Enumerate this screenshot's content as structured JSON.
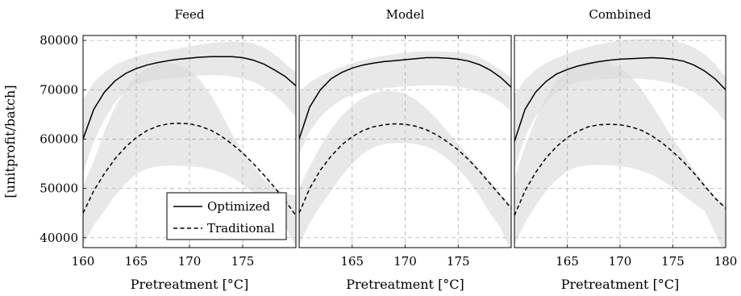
{
  "chart_data": [
    {
      "type": "line",
      "title": "Feed",
      "xlabel": "Pretreatment [°C]",
      "ylabel": "[unitprofit/batch]",
      "xlim": [
        160,
        180
      ],
      "ylim": [
        38000,
        81000
      ],
      "x_ticks": [
        160,
        165,
        170,
        175
      ],
      "y_ticks": [
        40000,
        50000,
        60000,
        70000,
        80000
      ],
      "grid": true,
      "series": [
        {
          "name": "Optimized",
          "style": "solid",
          "x": [
            160,
            161,
            162,
            163,
            164,
            165,
            166,
            167,
            168,
            169,
            170,
            171,
            172,
            173,
            174,
            175,
            176,
            177,
            178,
            179,
            180
          ],
          "y": [
            60000,
            66000,
            69500,
            71800,
            73300,
            74300,
            75000,
            75500,
            75900,
            76200,
            76400,
            76600,
            76700,
            76700,
            76700,
            76500,
            76000,
            75200,
            74000,
            72700,
            70800
          ],
          "band_upper": [
            68000,
            71500,
            73500,
            75000,
            76000,
            76800,
            77300,
            77700,
            78000,
            78400,
            78800,
            79200,
            79500,
            79700,
            79800,
            79700,
            79400,
            78600,
            77200,
            75300,
            73500
          ],
          "band_lower": [
            53000,
            59500,
            64000,
            67500,
            69800,
            71000,
            71600,
            72000,
            72300,
            72500,
            72700,
            72900,
            73000,
            72900,
            72700,
            72300,
            71600,
            70500,
            69000,
            67000,
            64500
          ]
        },
        {
          "name": "Traditional",
          "style": "dashed",
          "x": [
            160,
            161,
            162,
            163,
            164,
            165,
            166,
            167,
            168,
            169,
            170,
            171,
            172,
            173,
            174,
            175,
            176,
            177,
            178,
            179,
            180
          ],
          "y": [
            45000,
            49500,
            53000,
            56000,
            58400,
            60300,
            61700,
            62600,
            63100,
            63200,
            63100,
            62600,
            61800,
            60600,
            59000,
            57200,
            55000,
            52700,
            50200,
            47500,
            44500
          ],
          "band_upper": [
            50500,
            55500,
            61500,
            66500,
            70200,
            72800,
            74300,
            75200,
            75500,
            75100,
            74000,
            72000,
            69000,
            65200,
            61000,
            57500,
            54500,
            51800,
            50000,
            49000,
            48500
          ],
          "band_lower": [
            38500,
            42500,
            45500,
            48500,
            51000,
            53000,
            54000,
            54500,
            54600,
            54600,
            54500,
            54300,
            53900,
            53200,
            52200,
            50800,
            49200,
            47500,
            45000,
            42500,
            38000
          ]
        }
      ],
      "legend": {
        "entries": [
          "Optimized",
          "Traditional"
        ],
        "placement": "bottom-right"
      }
    },
    {
      "type": "line",
      "title": "Model",
      "xlabel": "Pretreatment [°C]",
      "xlim": [
        160,
        180
      ],
      "ylim": [
        38000,
        81000
      ],
      "x_ticks": [
        165,
        170,
        175
      ],
      "grid": true,
      "series": [
        {
          "name": "Optimized",
          "style": "solid",
          "x": [
            160,
            161,
            162,
            163,
            164,
            165,
            166,
            167,
            168,
            169,
            170,
            171,
            172,
            173,
            174,
            175,
            176,
            177,
            178,
            179,
            180
          ],
          "y": [
            60000,
            66500,
            70000,
            72200,
            73500,
            74400,
            75000,
            75400,
            75700,
            75900,
            76100,
            76300,
            76500,
            76500,
            76400,
            76200,
            75800,
            75100,
            74000,
            72500,
            70500
          ],
          "band_upper": [
            69500,
            71500,
            72800,
            73800,
            74600,
            75400,
            76000,
            76500,
            76900,
            77200,
            77500,
            77700,
            77800,
            77800,
            77700,
            77600,
            77300,
            76600,
            75400,
            74000,
            72500
          ],
          "band_lower": [
            57000,
            61500,
            64500,
            66500,
            68000,
            69000,
            69600,
            70000,
            70300,
            70500,
            70700,
            70800,
            70900,
            70900,
            70800,
            70600,
            70200,
            69600,
            68700,
            67500,
            65500
          ]
        },
        {
          "name": "Traditional",
          "style": "dashed",
          "x": [
            160,
            161,
            162,
            163,
            164,
            165,
            166,
            167,
            168,
            169,
            170,
            171,
            172,
            173,
            174,
            175,
            176,
            177,
            178,
            179,
            180
          ],
          "y": [
            45000,
            50000,
            53700,
            56500,
            58800,
            60500,
            61700,
            62500,
            62900,
            63100,
            63000,
            62600,
            61900,
            60800,
            59400,
            57800,
            55800,
            53500,
            51000,
            48500,
            46000
          ],
          "band_upper": [
            50000,
            54500,
            58500,
            62000,
            64700,
            66800,
            68300,
            69300,
            69800,
            69800,
            69200,
            68000,
            66200,
            64000,
            61500,
            59000,
            56500,
            54000,
            51500,
            49000,
            46500
          ],
          "band_lower": [
            38500,
            43000,
            46500,
            49500,
            52500,
            55000,
            57000,
            58300,
            59000,
            59200,
            59200,
            59000,
            58500,
            57500,
            56000,
            54000,
            51500,
            48500,
            45000,
            42000,
            37000
          ]
        }
      ]
    },
    {
      "type": "line",
      "title": "Combined",
      "xlabel": "Pretreatment [°C]",
      "xlim": [
        160,
        180
      ],
      "ylim": [
        38000,
        81000
      ],
      "x_ticks": [
        165,
        170,
        175,
        180
      ],
      "grid": true,
      "series": [
        {
          "name": "Optimized",
          "style": "solid",
          "x": [
            160,
            161,
            162,
            163,
            164,
            165,
            166,
            167,
            168,
            169,
            170,
            171,
            172,
            173,
            174,
            175,
            176,
            177,
            178,
            179,
            180
          ],
          "y": [
            59500,
            66000,
            69500,
            71700,
            73200,
            74100,
            74800,
            75300,
            75700,
            76000,
            76200,
            76300,
            76400,
            76500,
            76400,
            76200,
            75800,
            75000,
            73800,
            72200,
            70000
          ],
          "band_upper": [
            69000,
            72000,
            74000,
            75400,
            76400,
            77300,
            78100,
            78700,
            79200,
            79600,
            80000,
            80200,
            80300,
            80300,
            80200,
            80000,
            79500,
            78600,
            77200,
            75200,
            72500
          ],
          "band_lower": [
            54000,
            60500,
            64500,
            67500,
            69500,
            70800,
            71500,
            71900,
            72100,
            72200,
            72300,
            72300,
            72200,
            72000,
            71700,
            71200,
            70500,
            69500,
            68000,
            66000,
            63500
          ]
        },
        {
          "name": "Traditional",
          "style": "dashed",
          "x": [
            160,
            161,
            162,
            163,
            164,
            165,
            166,
            167,
            168,
            169,
            170,
            171,
            172,
            173,
            174,
            175,
            176,
            177,
            178,
            179,
            180
          ],
          "y": [
            44500,
            49500,
            53200,
            56200,
            58500,
            60300,
            61600,
            62500,
            62900,
            63000,
            62900,
            62500,
            61800,
            60700,
            59200,
            57400,
            55400,
            53100,
            50500,
            48000,
            46000
          ],
          "band_upper": [
            52000,
            58500,
            64000,
            68500,
            71800,
            73800,
            75000,
            75600,
            75800,
            75400,
            74500,
            72800,
            70200,
            67000,
            63500,
            60000,
            57000,
            53800,
            51000,
            48500,
            46500
          ],
          "band_lower": [
            38500,
            43000,
            46500,
            49500,
            51800,
            53500,
            54400,
            54700,
            54800,
            54700,
            54500,
            54200,
            53600,
            52800,
            51600,
            50200,
            48600,
            47000,
            45500,
            41000,
            36000
          ]
        }
      ]
    }
  ]
}
